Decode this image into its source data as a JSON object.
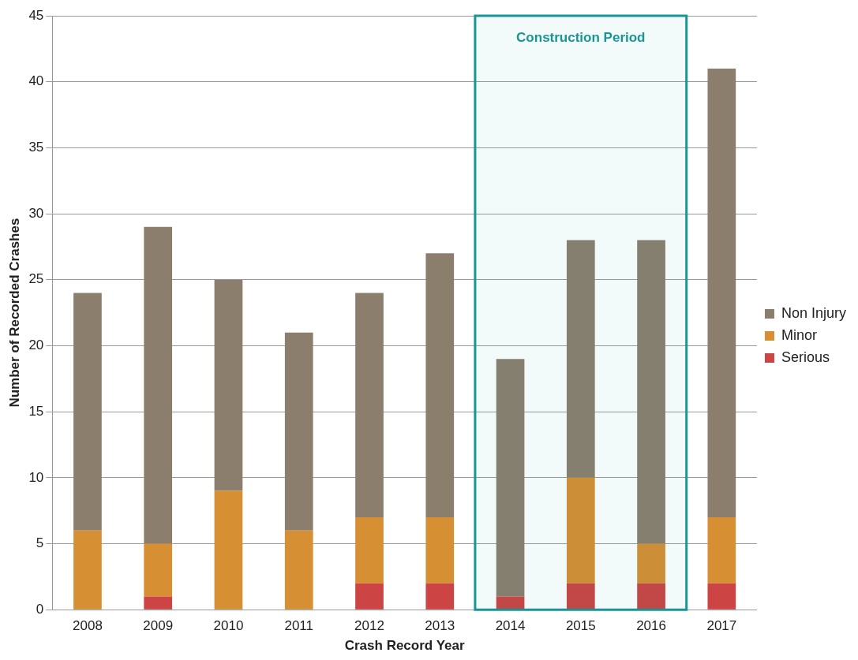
{
  "chart_data": {
    "type": "bar",
    "stacked": true,
    "xlabel": "Crash Record Year",
    "ylabel": "Number of Recorded Crashes",
    "categories": [
      "2008",
      "2009",
      "2010",
      "2011",
      "2012",
      "2013",
      "2014",
      "2015",
      "2016",
      "2017"
    ],
    "series": [
      {
        "name": "Serious",
        "color": "#cc4444",
        "values": [
          0,
          1,
          0,
          0,
          2,
          2,
          1,
          2,
          2,
          2
        ]
      },
      {
        "name": "Minor",
        "color": "#d68f32",
        "values": [
          6,
          4,
          9,
          6,
          5,
          5,
          0,
          8,
          3,
          5
        ]
      },
      {
        "name": "Non Injury",
        "color": "#8c7e6d",
        "values": [
          18,
          24,
          16,
          15,
          17,
          20,
          18,
          18,
          23,
          34
        ]
      }
    ],
    "ylim": [
      0,
      45
    ],
    "yticks": [
      0,
      5,
      10,
      15,
      20,
      25,
      30,
      35,
      40,
      45
    ],
    "grid": "y",
    "legend": "right",
    "bands": [
      {
        "axis": "x",
        "from": "2014",
        "to": "2016",
        "label": "Construction Period",
        "color": "#1a9595"
      }
    ]
  }
}
